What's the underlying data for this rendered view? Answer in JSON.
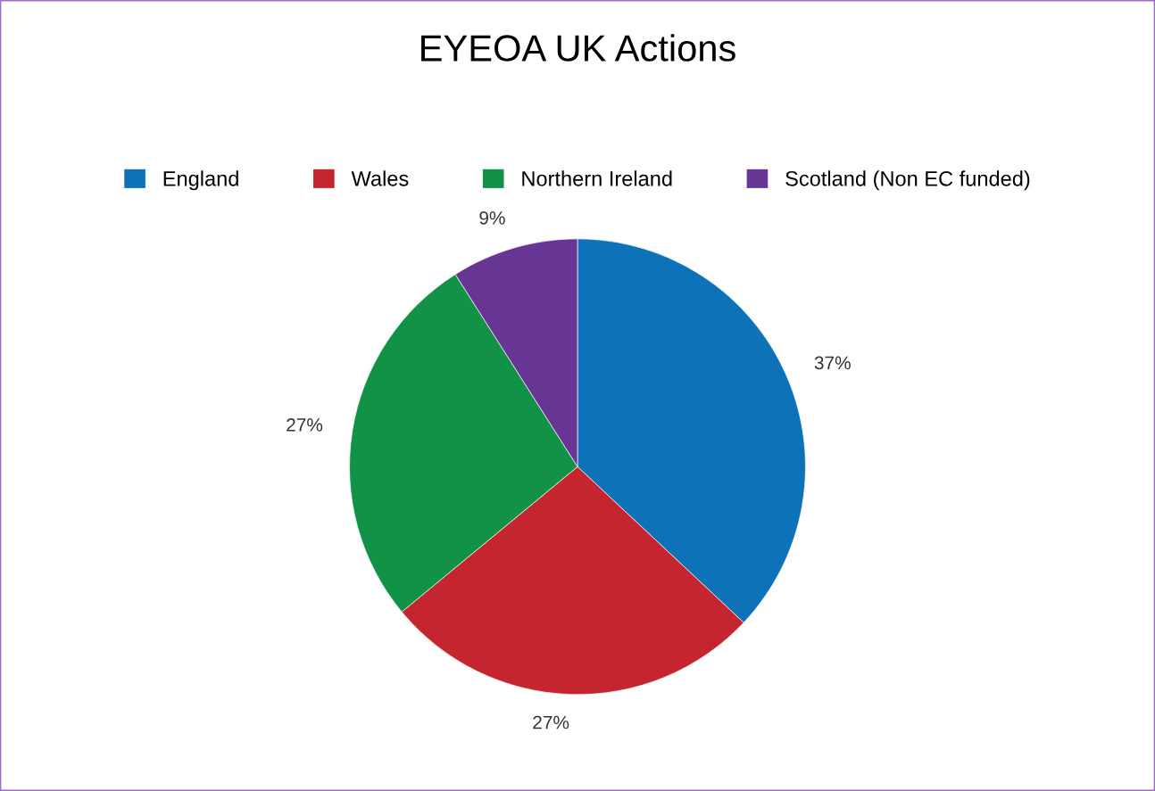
{
  "chart_data": {
    "type": "pie",
    "title": "EYEOA UK Actions",
    "categories": [
      "England",
      "Wales",
      "Northern Ireland",
      "Scotland (Non EC funded)"
    ],
    "values": [
      37,
      27,
      27,
      9
    ],
    "value_labels": [
      "37%",
      "27%",
      "27%",
      "9%"
    ],
    "colors": [
      "#0e72b9",
      "#c4252e",
      "#129246",
      "#673594"
    ],
    "legend": "top"
  }
}
